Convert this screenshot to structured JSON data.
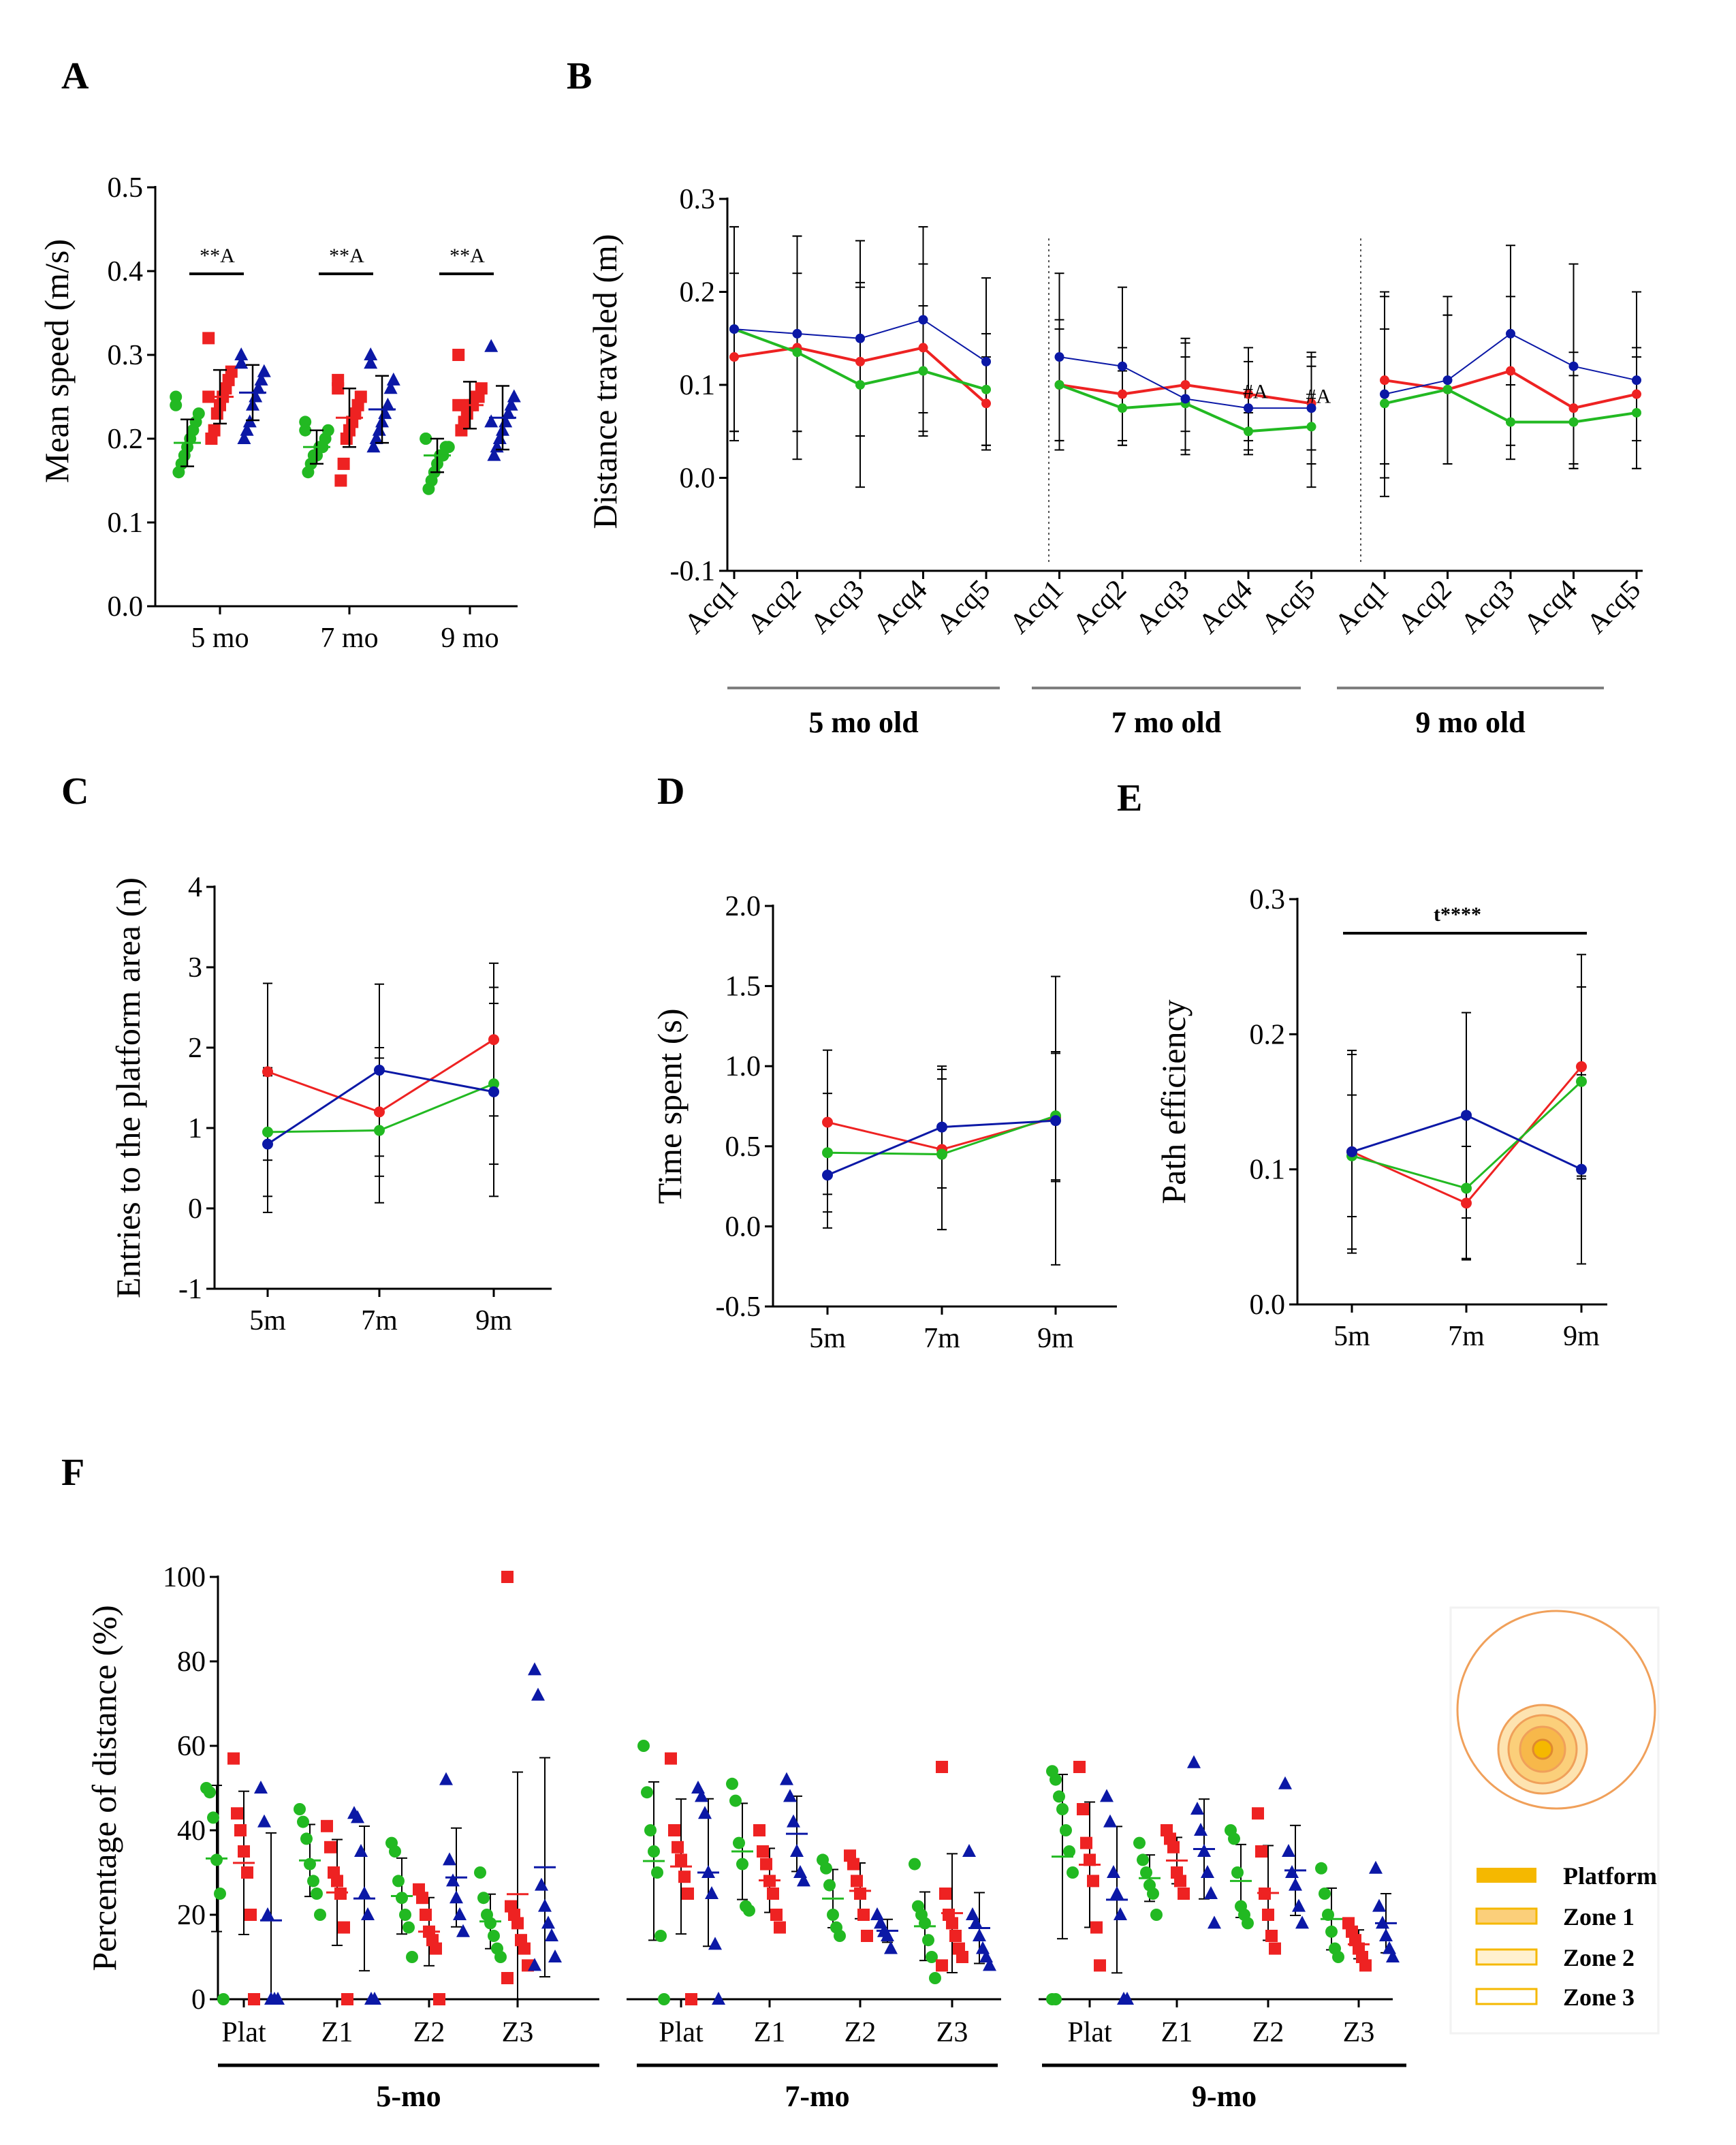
{
  "colors": {
    "green": "#22b922",
    "red": "#ee2222",
    "blue": "#0b18a6",
    "axis": "#000000",
    "gray": "#7f7f7f",
    "orange": "#f0a05a",
    "gold": "#f5b800"
  },
  "panels": {
    "A": "A",
    "B": "B",
    "C": "C",
    "D": "D",
    "E": "E",
    "F": "F"
  },
  "legend": {
    "items": [
      "Platform",
      "Zone 1",
      "Zone 2",
      "Zone 3"
    ]
  },
  "chart_data": [
    {
      "id": "A",
      "type": "scatter",
      "ylabel": "Mean speed (m/s)",
      "xlabel": "",
      "ylim": [
        0.0,
        0.5
      ],
      "yticks": [
        "0.0",
        "0.1",
        "0.2",
        "0.3",
        "0.4",
        "0.5"
      ],
      "categories": [
        "5 mo",
        "7 mo",
        "9 mo"
      ],
      "annotations": [
        "**A",
        "**A",
        "**A"
      ],
      "series": [
        {
          "name": "green",
          "color": "green",
          "marker": "circle",
          "points": [
            [
              0.25,
              0.16,
              0.17,
              0.18,
              0.19,
              0.2,
              0.21,
              0.22,
              0.23,
              0.24
            ],
            [
              0.21,
              0.16,
              0.17,
              0.18,
              0.18,
              0.19,
              0.19,
              0.2,
              0.21,
              0.22
            ],
            [
              0.2,
              0.14,
              0.15,
              0.16,
              0.17,
              0.18,
              0.18,
              0.19,
              0.19,
              0.2
            ]
          ],
          "mean": [
            0.195,
            0.19,
            0.18
          ],
          "sd": [
            0.028,
            0.02,
            0.02
          ]
        },
        {
          "name": "red",
          "color": "red",
          "marker": "square",
          "points": [
            [
              0.32,
              0.2,
              0.21,
              0.23,
              0.24,
              0.25,
              0.26,
              0.27,
              0.28,
              0.25
            ],
            [
              0.27,
              0.15,
              0.17,
              0.2,
              0.21,
              0.22,
              0.23,
              0.24,
              0.25,
              0.26
            ],
            [
              0.3,
              0.21,
              0.22,
              0.23,
              0.24,
              0.24,
              0.25,
              0.25,
              0.26,
              0.24
            ]
          ],
          "mean": [
            0.25,
            0.225,
            0.24
          ],
          "sd": [
            0.032,
            0.035,
            0.028
          ]
        },
        {
          "name": "blue",
          "color": "blue",
          "marker": "triangle",
          "points": [
            [
              0.3,
              0.2,
              0.21,
              0.22,
              0.24,
              0.25,
              0.26,
              0.27,
              0.28,
              0.29
            ],
            [
              0.3,
              0.19,
              0.2,
              0.21,
              0.22,
              0.23,
              0.24,
              0.26,
              0.27,
              0.29
            ],
            [
              0.31,
              0.18,
              0.19,
              0.2,
              0.21,
              0.22,
              0.23,
              0.24,
              0.25,
              0.22
            ]
          ],
          "mean": [
            0.255,
            0.235,
            0.225
          ],
          "sd": [
            0.033,
            0.04,
            0.038
          ]
        }
      ]
    },
    {
      "id": "B",
      "type": "line",
      "ylabel": "Distance traveled (m)",
      "ylim": [
        -0.1,
        0.3
      ],
      "yticks": [
        "-0.1",
        "0.0",
        "0.1",
        "0.2",
        "0.3"
      ],
      "categories": [
        "Acq1",
        "Acq2",
        "Acq3",
        "Acq4",
        "Acq5",
        "Acq1",
        "Acq2",
        "Acq3",
        "Acq4",
        "Acq5",
        "Acq1",
        "Acq2",
        "Acq3",
        "Acq4",
        "Acq5"
      ],
      "groups": [
        "5 mo old",
        "7 mo old",
        "9 mo old"
      ],
      "annotations": [
        "#A",
        "#A"
      ],
      "series": [
        {
          "name": "red",
          "color": "red",
          "values": [
            0.13,
            0.14,
            0.125,
            0.14,
            0.08,
            0.1,
            0.09,
            0.1,
            0.09,
            0.08,
            0.105,
            0.095,
            0.115,
            0.075,
            0.09
          ],
          "errors": [
            0.09,
            0.12,
            0.08,
            0.09,
            0.05,
            0.07,
            0.05,
            0.05,
            0.05,
            0.05,
            0.09,
            0.08,
            0.08,
            0.06,
            0.05
          ]
        },
        {
          "name": "green",
          "color": "green",
          "values": [
            0.16,
            0.135,
            0.1,
            0.115,
            0.095,
            0.1,
            0.075,
            0.08,
            0.05,
            0.055,
            0.08,
            0.095,
            0.06,
            0.06,
            0.07
          ],
          "errors": [
            0.11,
            0.085,
            0.11,
            0.07,
            0.06,
            0.06,
            0.04,
            0.05,
            0.02,
            0.065,
            0.08,
            0.08,
            0.04,
            0.05,
            0.06
          ]
        },
        {
          "name": "blue",
          "color": "blue",
          "values": [
            0.16,
            0.155,
            0.15,
            0.17,
            0.125,
            0.13,
            0.12,
            0.085,
            0.075,
            0.075,
            0.09,
            0.105,
            0.155,
            0.12,
            0.105
          ],
          "errors": [
            0.11,
            0.105,
            0.105,
            0.1,
            0.09,
            0.09,
            0.085,
            0.06,
            0.05,
            0.06,
            0.11,
            0.09,
            0.095,
            0.11,
            0.095
          ]
        }
      ]
    },
    {
      "id": "C",
      "type": "line",
      "ylabel": "Entries to the platform area (n)",
      "ylim": [
        -1,
        4
      ],
      "yticks": [
        "-1",
        "0",
        "1",
        "2",
        "3",
        "4"
      ],
      "categories": [
        "5m",
        "7m",
        "9m"
      ],
      "series": [
        {
          "name": "red",
          "color": "red",
          "values": [
            1.7,
            1.2,
            2.1
          ],
          "errors": [
            1.1,
            0.8,
            0.95
          ]
        },
        {
          "name": "green",
          "color": "green",
          "values": [
            0.95,
            0.97,
            1.55
          ],
          "errors": [
            0.8,
            0.9,
            1.0
          ]
        },
        {
          "name": "blue",
          "color": "blue",
          "values": [
            0.8,
            1.72,
            1.45
          ],
          "errors": [
            0.85,
            1.07,
            1.3
          ]
        }
      ]
    },
    {
      "id": "D",
      "type": "line",
      "ylabel": "Time spent (s)",
      "ylim": [
        -0.5,
        2.0
      ],
      "yticks": [
        "-0.5",
        "0.0",
        "0.5",
        "1.0",
        "1.5",
        "2.0"
      ],
      "categories": [
        "5m",
        "7m",
        "9m"
      ],
      "series": [
        {
          "name": "red",
          "color": "red",
          "values": [
            0.65,
            0.48,
            0.68
          ],
          "errors": [
            0.45,
            0.5,
            0.4
          ]
        },
        {
          "name": "green",
          "color": "green",
          "values": [
            0.46,
            0.45,
            0.69
          ],
          "errors": [
            0.37,
            0.47,
            0.4
          ]
        },
        {
          "name": "blue",
          "color": "blue",
          "values": [
            0.32,
            0.62,
            0.66
          ],
          "errors": [
            0.33,
            0.38,
            0.9
          ]
        }
      ]
    },
    {
      "id": "E",
      "type": "line",
      "ylabel": "Path efficiency",
      "ylim": [
        0.0,
        0.3
      ],
      "yticks": [
        "0.0",
        "0.1",
        "0.2",
        "0.3"
      ],
      "categories": [
        "5m",
        "7m",
        "9m"
      ],
      "annotation": "t****",
      "series": [
        {
          "name": "red",
          "color": "red",
          "values": [
            0.113,
            0.075,
            0.176
          ],
          "errors": [
            0.072,
            0.042,
            0.083
          ]
        },
        {
          "name": "green",
          "color": "green",
          "values": [
            0.11,
            0.086,
            0.165
          ],
          "errors": [
            0.045,
            0.052,
            0.07
          ]
        },
        {
          "name": "blue",
          "color": "blue",
          "values": [
            0.113,
            0.14,
            0.1
          ],
          "errors": [
            0.075,
            0.076,
            0.07
          ]
        }
      ]
    },
    {
      "id": "F",
      "type": "scatter",
      "ylabel": "Percentage of distance (%)",
      "ylim": [
        0,
        100
      ],
      "yticks": [
        "0",
        "20",
        "40",
        "60",
        "80",
        "100"
      ],
      "categories": [
        "Plat",
        "Z1",
        "Z2",
        "Z3"
      ],
      "groups": [
        "5-mo",
        "7-mo",
        "9-mo"
      ],
      "data": [
        [
          {
            "g": [
              50,
              49,
              43,
              33,
              25,
              0
            ],
            "r": [
              57,
              44,
              40,
              35,
              30,
              20,
              0
            ],
            "b": [
              50,
              42,
              20,
              0,
              0,
              0
            ],
            "gm": [
              27,
              25,
              23,
              18
            ],
            "rm": [
              34,
              29,
              19,
              18
            ],
            "bm": [
              20,
              27,
              26,
              28
            ]
          },
          {
            "g": [
              45,
              42,
              38,
              32,
              28,
              25,
              20
            ],
            "r": [
              41,
              36,
              30,
              28,
              25,
              17,
              0
            ],
            "b": [
              44,
              43,
              35,
              25,
              20,
              0,
              0
            ],
            "gm": [
              35,
              30,
              22,
              18
            ],
            "rm": [
              30,
              27,
              18,
              17
            ],
            "bm": [
              30,
              28,
              25,
              27
            ]
          },
          {
            "g": [
              37,
              35,
              28,
              24,
              20,
              17,
              10
            ],
            "r": [
              26,
              24,
              20,
              16,
              14,
              12,
              0
            ],
            "b": [
              52,
              33,
              28,
              24,
              20,
              16
            ],
            "gm": [
              24,
              20,
              22,
              17
            ],
            "rm": [
              20,
              18,
              18,
              18
            ],
            "bm": [
              24,
              22,
              22,
              20
            ]
          },
          {
            "g": [
              30,
              24,
              20,
              18,
              15,
              12,
              10
            ],
            "r": [
              100,
              22,
              20,
              18,
              14,
              12,
              8,
              5
            ],
            "b": [
              78,
              72,
              27,
              22,
              18,
              15,
              10,
              8
            ],
            "gm": [
              20,
              18,
              18,
              18
            ],
            "rm": [
              18,
              22,
              22,
              22
            ],
            "bm": [
              28,
              26,
              28,
              28
            ]
          }
        ],
        [
          {
            "g": [
              60,
              49,
              40,
              35,
              30,
              15,
              0
            ],
            "r": [
              57,
              40,
              36,
              33,
              29,
              25,
              0
            ],
            "b": [
              50,
              48,
              44,
              30,
              25,
              13,
              0
            ],
            "gm": [
              30,
              28,
              26,
              25
            ],
            "rm": [
              33,
              30,
              28,
              25
            ],
            "bm": [
              33,
              30,
              30,
              30
            ]
          },
          {
            "g": [
              51,
              47,
              37,
              32,
              22,
              21
            ],
            "r": [
              40,
              35,
              32,
              28,
              25,
              20,
              17
            ],
            "b": [
              52,
              48,
              42,
              35,
              30,
              28
            ],
            "gm": [
              37,
              35,
              35,
              35
            ],
            "rm": [
              30,
              28,
              28,
              28
            ],
            "bm": [
              36,
              35,
              35,
              35
            ]
          },
          {
            "g": [
              33,
              31,
              27,
              20,
              17,
              15
            ],
            "r": [
              34,
              32,
              28,
              25,
              20,
              15
            ],
            "b": [
              20,
              18,
              16,
              15,
              12
            ],
            "gm": [
              24,
              22,
              22,
              22
            ],
            "rm": [
              27,
              25,
              25,
              25
            ],
            "bm": [
              17,
              17,
              17,
              17
            ]
          },
          {
            "g": [
              32,
              22,
              20,
              18,
              14,
              10,
              5
            ],
            "r": [
              55,
              25,
              20,
              18,
              15,
              12,
              10,
              8
            ],
            "b": [
              35,
              20,
              18,
              15,
              12,
              10,
              8
            ],
            "gm": [
              20,
              18,
              18,
              18
            ],
            "rm": [
              16,
              18,
              18,
              18
            ],
            "bm": [
              16,
              15,
              15,
              15
            ]
          }
        ],
        [
          {
            "g": [
              54,
              52,
              48,
              45,
              40,
              35,
              30,
              0,
              0
            ],
            "r": [
              55,
              45,
              37,
              33,
              28,
              17,
              8
            ],
            "b": [
              48,
              42,
              30,
              25,
              20,
              0,
              0
            ],
            "gm": [
              36,
              35,
              35,
              35
            ],
            "rm": [
              32,
              30,
              30,
              30
            ],
            "bm": [
              26,
              25,
              25,
              25
            ]
          },
          {
            "g": [
              37,
              33,
              30,
              27,
              25,
              20
            ],
            "r": [
              40,
              38,
              36,
              30,
              28,
              25
            ],
            "b": [
              56,
              45,
              40,
              35,
              30,
              25,
              18
            ],
            "gm": [
              29,
              28,
              28,
              28
            ],
            "rm": [
              31,
              30,
              30,
              30
            ],
            "bm": [
              35,
              34,
              34,
              34
            ]
          },
          {
            "g": [
              40,
              38,
              30,
              22,
              20,
              18
            ],
            "r": [
              44,
              35,
              25,
              20,
              15,
              12
            ],
            "b": [
              51,
              35,
              30,
              27,
              22,
              18
            ],
            "gm": [
              24,
              22,
              22,
              22
            ],
            "rm": [
              21,
              20,
              20,
              20
            ],
            "bm": [
              28,
              27,
              27,
              27
            ]
          },
          {
            "g": [
              31,
              25,
              20,
              16,
              12,
              10
            ],
            "r": [
              18,
              16,
              14,
              12,
              10,
              8
            ],
            "b": [
              31,
              22,
              18,
              15,
              12,
              10
            ],
            "gm": [
              17,
              16,
              16,
              16
            ],
            "rm": [
              13,
              13,
              13,
              13
            ],
            "bm": [
              18,
              17,
              17,
              17
            ]
          }
        ]
      ]
    }
  ]
}
